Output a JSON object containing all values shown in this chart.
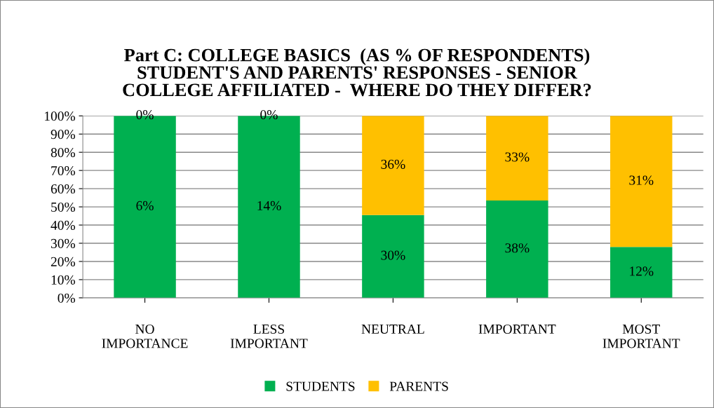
{
  "chart_data": {
    "type": "bar",
    "stacked": true,
    "title": "Part C: COLLEGE BASICS  (AS % OF RESPONDENTS)\nSTUDENT'S AND PARENTS' RESPONSES - SENIOR\nCOLLEGE AFFILIATED -  WHERE DO THEY DIFFER?",
    "categories": [
      "NO\nIMPORTANCE",
      "LESS\nIMPORTANT",
      "NEUTRAL",
      "IMPORTANT",
      "MOST\nIMPORTANT"
    ],
    "series": [
      {
        "name": "STUDENTS",
        "color": "#00b050",
        "values": [
          100,
          100,
          45.5,
          53.5,
          28
        ]
      },
      {
        "name": "PARENTS",
        "color": "#ffc000",
        "values": [
          0,
          0,
          54.5,
          46.5,
          72
        ]
      }
    ],
    "annotations": [
      "6%",
      "14%",
      "30%",
      "38%",
      "12%",
      "0%",
      "0%",
      "36%",
      "33%",
      "31%"
    ],
    "ylim": [
      0,
      100
    ],
    "yticks": [
      {
        "value": 0,
        "label": "0%"
      },
      {
        "value": 10,
        "label": "10%"
      },
      {
        "value": 20,
        "label": "20%"
      },
      {
        "value": 30,
        "label": "30%"
      },
      {
        "value": 40,
        "label": "40%"
      },
      {
        "value": 50,
        "label": "50%"
      },
      {
        "value": 60,
        "label": "60%"
      },
      {
        "value": 70,
        "label": "70%"
      },
      {
        "value": 80,
        "label": "80%"
      },
      {
        "value": 90,
        "label": "90%"
      },
      {
        "value": 100,
        "label": "100%"
      }
    ],
    "grid": "y",
    "legend": "bottom"
  }
}
